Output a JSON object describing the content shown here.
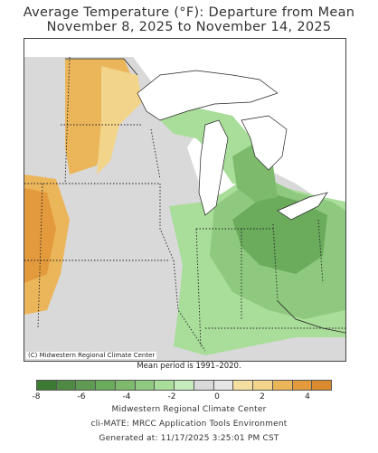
{
  "title": {
    "line1": "Average Temperature (°F): Departure from Mean",
    "line2": "November 8, 2025 to November 14, 2025"
  },
  "map": {
    "credit": "(C) Midwestern Regional Climate Center",
    "colors": {
      "water": "#ffffff",
      "neutral": "#d9d9d9",
      "warm_light": "#f2d48a",
      "warm_mid": "#ebb55a",
      "warm_dark": "#e39a3c",
      "cool_light": "#a9dd9a",
      "cool_mid": "#8fc97f",
      "cool_dark": "#6aab5c"
    }
  },
  "mean_period": "Mean period is 1991–2020.",
  "legend": {
    "colors": [
      "#3d7a34",
      "#4f8a45",
      "#5f9a53",
      "#6aab5c",
      "#7dba6c",
      "#8fc97f",
      "#a9dd9a",
      "#c6ebbb",
      "#d9d9d9",
      "#e6e6e6",
      "#f5dfa0",
      "#f2d48a",
      "#ebb55a",
      "#e39a3c",
      "#d88a2c"
    ],
    "tick_labels": [
      "-8",
      "-6",
      "-4",
      "-2",
      "0",
      "2",
      "4"
    ],
    "tick_values": [
      -8,
      -6,
      -4,
      -2,
      0,
      2,
      4
    ],
    "min": -8,
    "max": 5
  },
  "footer": {
    "line1": "Midwestern Regional Climate Center",
    "line2": "cli-MATE: MRCC Application Tools Environment",
    "line3": "Generated at: 11/17/2025 3:25:01 PM CST"
  }
}
